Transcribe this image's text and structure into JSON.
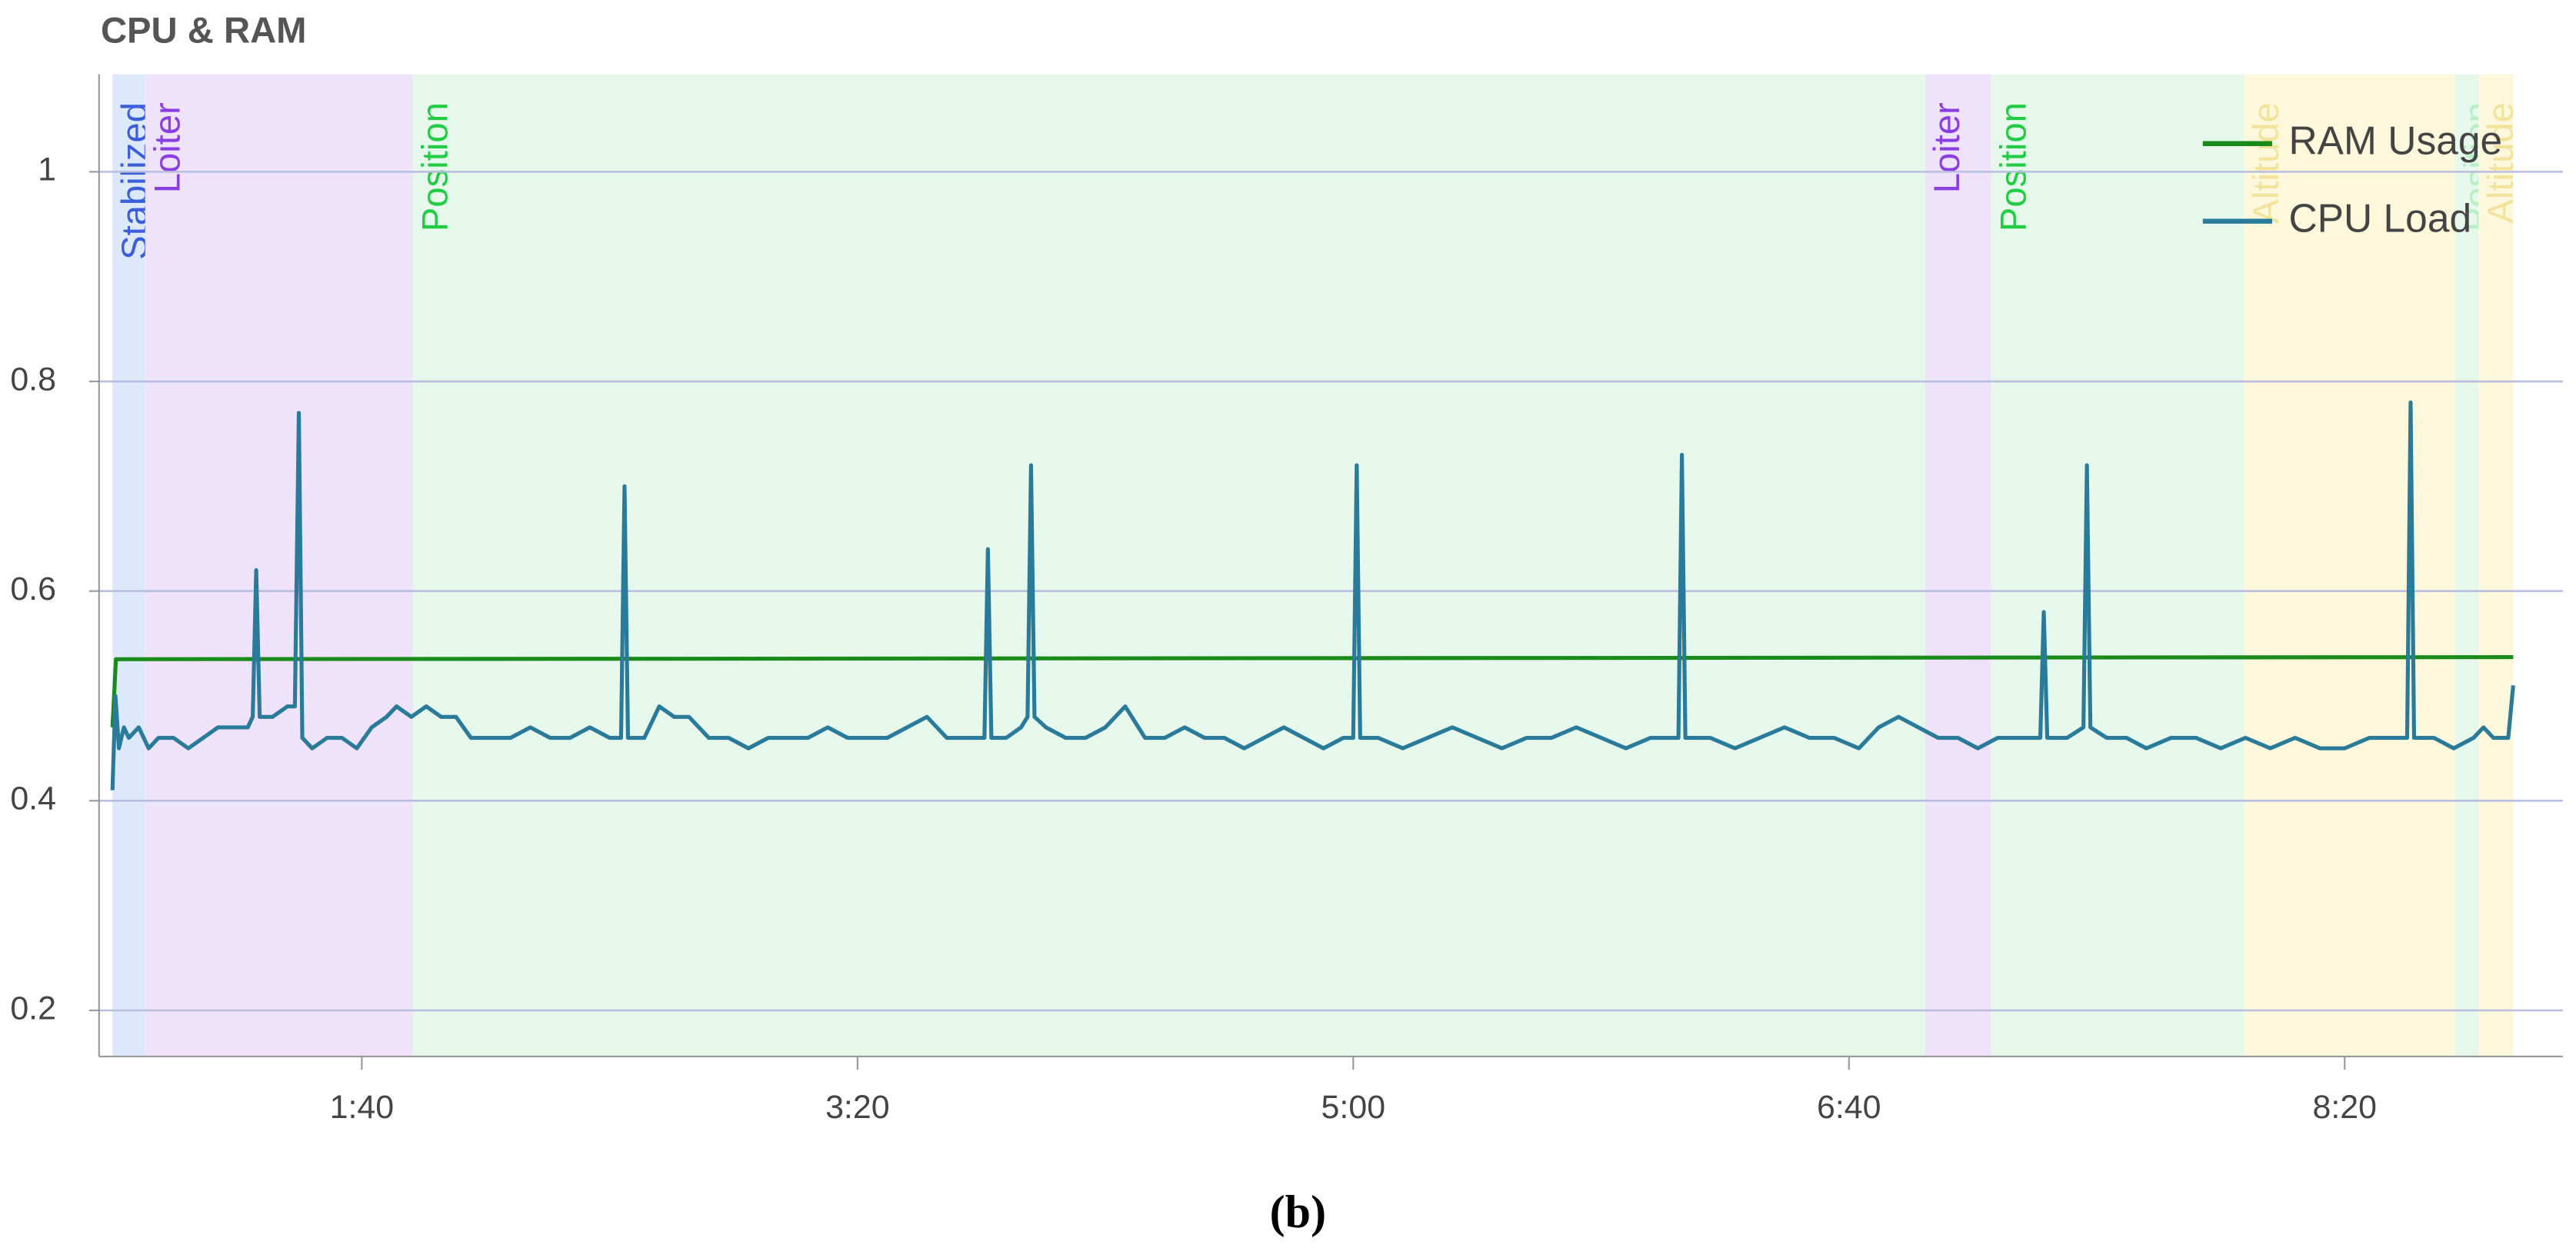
{
  "chart_data": {
    "type": "line",
    "title": "CPU & RAM",
    "caption": "(b)",
    "xlim": [
      47,
      544
    ],
    "ylim": [
      0.156,
      1.093
    ],
    "xticks": [
      {
        "value": 100,
        "label": "1:40"
      },
      {
        "value": 200,
        "label": "3:20"
      },
      {
        "value": 300,
        "label": "5:00"
      },
      {
        "value": 400,
        "label": "6:40"
      },
      {
        "value": 500,
        "label": "8:20"
      }
    ],
    "yticks": [
      0.2,
      0.4,
      0.6,
      0.8,
      1
    ],
    "grid": true,
    "legend": "top-right",
    "modes": [
      {
        "label": "Stabilized",
        "start": 49.7,
        "end": 56.3,
        "color": "#dde8fb",
        "label_color": "#3b5fd9"
      },
      {
        "label": "Loiter",
        "start": 56.3,
        "end": 110.3,
        "color": "#efe2fb",
        "label_color": "#8a3fe0"
      },
      {
        "label": "Position",
        "start": 110.3,
        "end": 415.3,
        "color": "#e6f7ec",
        "label_color": "#22cc44"
      },
      {
        "label": "Loiter",
        "start": 415.3,
        "end": 428.7,
        "color": "#efe2fb",
        "label_color": "#8a3fe0"
      },
      {
        "label": "Position",
        "start": 428.7,
        "end": 479.7,
        "color": "#e6f7ec",
        "label_color": "#22cc44"
      },
      {
        "label": "Altitude",
        "start": 479.7,
        "end": 522.3,
        "color": "#fdf8dc",
        "label_color": "#f2e39c"
      },
      {
        "label": "Position",
        "start": 522.3,
        "end": 527,
        "color": "#e6f7ec",
        "label_color": "#b8eec4"
      },
      {
        "label": "Altitude",
        "start": 527,
        "end": 534,
        "color": "#fdf8dc",
        "label_color": "#f2e39c"
      }
    ],
    "series": [
      {
        "name": "RAM Usage",
        "color": "#1a8a1a",
        "x": [
          49.7,
          50.4,
          534
        ],
        "values": [
          0.47,
          0.535,
          0.537
        ]
      },
      {
        "name": "CPU Load",
        "color": "#2a7a9a",
        "x": [
          49.7,
          50.3,
          51,
          52,
          53,
          55,
          57,
          59,
          62,
          65,
          68,
          71,
          74,
          77,
          78,
          78.7,
          79.4,
          82,
          85,
          86.5,
          87.3,
          88,
          90,
          93,
          96,
          99,
          102,
          105,
          107,
          110,
          113,
          116,
          119,
          122,
          126,
          130,
          134,
          138,
          142,
          146,
          150,
          152.3,
          153,
          153.7,
          157,
          160,
          163,
          166,
          170,
          174,
          178,
          182,
          186,
          190,
          194,
          198,
          202,
          206,
          210,
          214,
          218,
          222,
          225.6,
          226.3,
          227,
          230,
          233,
          234.3,
          235,
          235.7,
          238,
          242,
          246,
          250,
          254,
          258,
          262,
          266,
          270,
          274,
          278,
          282,
          286,
          290,
          294,
          298,
          300,
          300.7,
          301.4,
          305,
          310,
          315,
          320,
          325,
          330,
          335,
          340,
          345,
          350,
          355,
          360,
          365.6,
          366.3,
          367,
          372,
          377,
          382,
          387,
          392,
          397,
          402,
          406,
          410,
          414,
          418,
          422,
          426,
          430,
          434,
          438.6,
          439.3,
          440,
          444,
          447.3,
          448,
          448.7,
          452,
          456,
          460,
          465,
          470,
          475,
          480,
          485,
          490,
          495,
          500,
          505,
          510,
          512.6,
          513.3,
          514,
          518,
          522,
          526,
          528,
          530,
          533,
          534
        ],
        "values": [
          0.41,
          0.5,
          0.45,
          0.47,
          0.46,
          0.47,
          0.45,
          0.46,
          0.46,
          0.45,
          0.46,
          0.47,
          0.47,
          0.47,
          0.48,
          0.62,
          0.48,
          0.48,
          0.49,
          0.49,
          0.77,
          0.46,
          0.45,
          0.46,
          0.46,
          0.45,
          0.47,
          0.48,
          0.49,
          0.48,
          0.49,
          0.48,
          0.48,
          0.46,
          0.46,
          0.46,
          0.47,
          0.46,
          0.46,
          0.47,
          0.46,
          0.46,
          0.7,
          0.46,
          0.46,
          0.49,
          0.48,
          0.48,
          0.46,
          0.46,
          0.45,
          0.46,
          0.46,
          0.46,
          0.47,
          0.46,
          0.46,
          0.46,
          0.47,
          0.48,
          0.46,
          0.46,
          0.46,
          0.64,
          0.46,
          0.46,
          0.47,
          0.48,
          0.72,
          0.48,
          0.47,
          0.46,
          0.46,
          0.47,
          0.49,
          0.46,
          0.46,
          0.47,
          0.46,
          0.46,
          0.45,
          0.46,
          0.47,
          0.46,
          0.45,
          0.46,
          0.46,
          0.72,
          0.46,
          0.46,
          0.45,
          0.46,
          0.47,
          0.46,
          0.45,
          0.46,
          0.46,
          0.47,
          0.46,
          0.45,
          0.46,
          0.46,
          0.73,
          0.46,
          0.46,
          0.45,
          0.46,
          0.47,
          0.46,
          0.46,
          0.45,
          0.47,
          0.48,
          0.47,
          0.46,
          0.46,
          0.45,
          0.46,
          0.46,
          0.46,
          0.58,
          0.46,
          0.46,
          0.47,
          0.72,
          0.47,
          0.46,
          0.46,
          0.45,
          0.46,
          0.46,
          0.45,
          0.46,
          0.45,
          0.46,
          0.45,
          0.45,
          0.46,
          0.46,
          0.46,
          0.78,
          0.46,
          0.46,
          0.45,
          0.46,
          0.47,
          0.46,
          0.46,
          0.51
        ]
      }
    ]
  }
}
